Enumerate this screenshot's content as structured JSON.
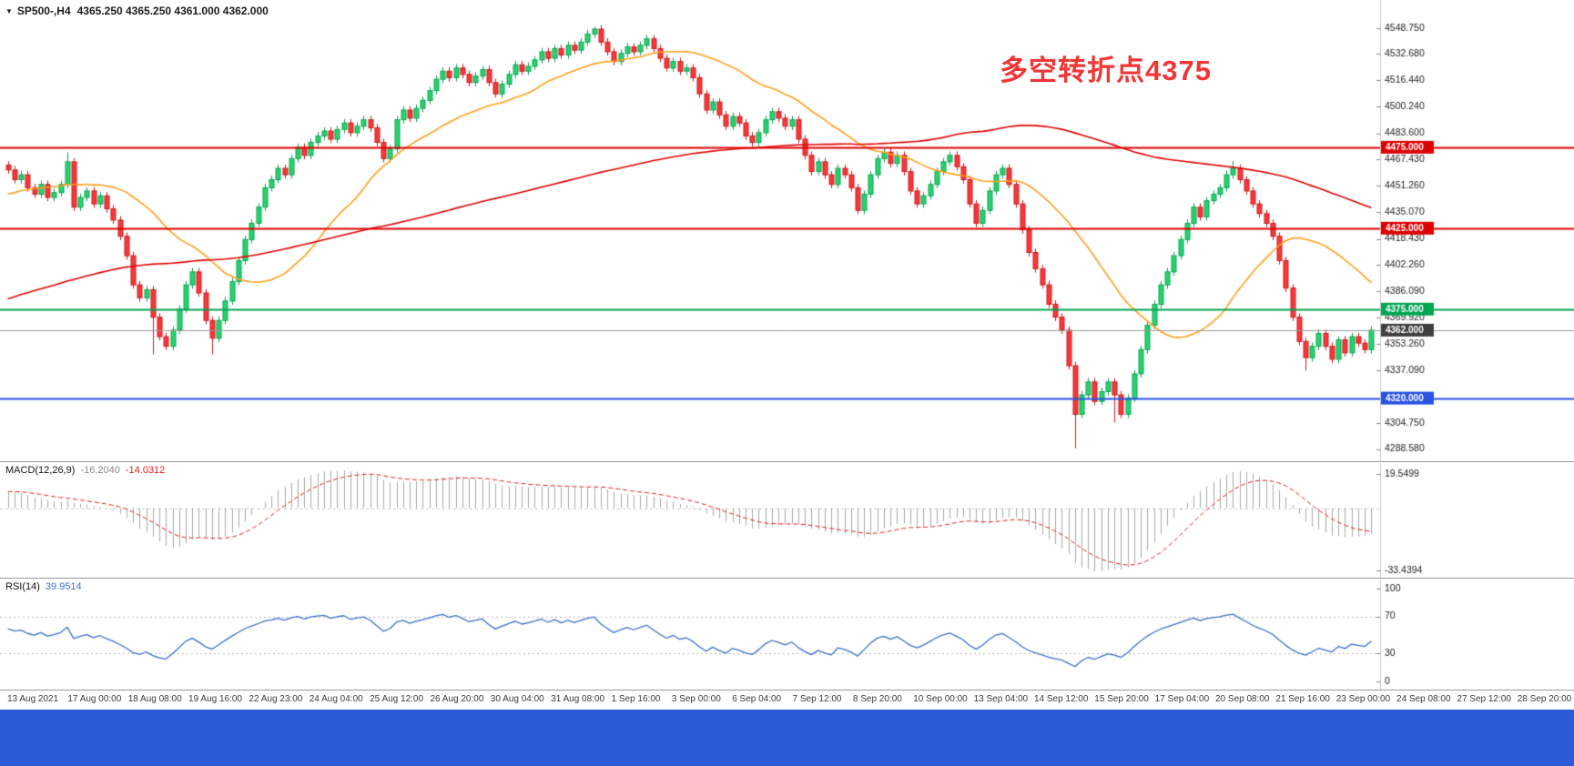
{
  "header": {
    "dropdown_icon": "▼",
    "symbol_period": "SP500-,H4",
    "ohlc_text": "4365.250 4365.250 4361.000 4362.000"
  },
  "annotation": {
    "text": "多空转折点4375",
    "color": "#f13636"
  },
  "style": {
    "bull_fill": "#27d36e",
    "bull_stroke": "#0da352",
    "bear_fill": "#f5383b",
    "bear_stroke": "#cc1c1f",
    "axis_text": "#1a1a1a",
    "axis_line": "#c9c9c9",
    "macd_bar": "#a9a9a9",
    "macd_signal": "#e02020",
    "rsi_line": "#3b6fc9",
    "level_dotted": "#b8b8b8",
    "zero_line": "#cfcfcf"
  },
  "chart_data": [
    {
      "type": "candlestick",
      "symbol": "SP500-",
      "timeframe": "H4",
      "ylim": [
        4281,
        4566
      ],
      "y_ticks": [
        4548.75,
        4532.68,
        4516.44,
        4500.24,
        4483.6,
        4467.43,
        4451.26,
        4435.07,
        4418.43,
        4402.26,
        4386.09,
        4369.92,
        4353.26,
        4337.09,
        4304.75,
        4288.58
      ],
      "hlines": [
        {
          "price": 4475,
          "label": "4475.000",
          "color": "#dd0000",
          "width": 2
        },
        {
          "price": 4425,
          "label": "4425.000",
          "color": "#dd0000",
          "width": 2
        },
        {
          "price": 4375,
          "label": "4375.000",
          "color": "#00a651",
          "width": 2
        },
        {
          "price": 4320,
          "label": "4320.000",
          "color": "#2952e3",
          "width": 2
        },
        {
          "price": 4362,
          "label": "4362.000",
          "color": "#9a9a9a",
          "width": 1,
          "tag_bg": "#3f3f3f",
          "current": true
        }
      ],
      "moving_averages": [
        {
          "period": 24,
          "color": "#ff9f1a"
        },
        {
          "period": 120,
          "color": "#e00000"
        }
      ],
      "pre_history": {
        "start": 4300,
        "end": 4460,
        "count": 120,
        "zigzag": 5
      },
      "first_open": 4464,
      "default_wick": 2.4,
      "wick_overrides": {
        "9": {
          "high": 4472
        },
        "22": {
          "low": 4347
        },
        "31": {
          "low": 4347
        },
        "89": {
          "high": 4549.5
        },
        "162": {
          "low": 4289
        },
        "168": {
          "low": 4305
        },
        "186": {
          "high": 4466.5
        },
        "197": {
          "low": 4337
        }
      },
      "closes": [
        4461,
        4455,
        4458,
        4450,
        4446,
        4452,
        4444,
        4447,
        4452,
        4466,
        4438,
        4444,
        4448,
        4440,
        4445,
        4437,
        4430,
        4420,
        4408,
        4390,
        4382,
        4387,
        4370,
        4358,
        4352,
        4362,
        4375,
        4390,
        4398,
        4385,
        4368,
        4357,
        4368,
        4380,
        4392,
        4405,
        4418,
        4428,
        4438,
        4450,
        4455,
        4462,
        4458,
        4468,
        4475,
        4470,
        4478,
        4482,
        4485,
        4480,
        4486,
        4490,
        4484,
        4488,
        4492,
        4487,
        4478,
        4468,
        4474,
        4492,
        4498,
        4493,
        4499,
        4504,
        4510,
        4517,
        4522,
        4518,
        4524,
        4520,
        4515,
        4519,
        4523,
        4515,
        4508,
        4514,
        4520,
        4526,
        4522,
        4525,
        4529,
        4534,
        4530,
        4536,
        4532,
        4538,
        4535,
        4540,
        4545,
        4548,
        4540,
        4534,
        4528,
        4533,
        4537,
        4534,
        4538,
        4542,
        4536,
        4530,
        4524,
        4528,
        4522,
        4524,
        4518,
        4508,
        4498,
        4503,
        4495,
        4488,
        4494,
        4490,
        4482,
        4478,
        4484,
        4492,
        4497,
        4493,
        4488,
        4492,
        4480,
        4470,
        4460,
        4466,
        4458,
        4452,
        4462,
        4458,
        4450,
        4436,
        4446,
        4458,
        4468,
        4472,
        4465,
        4470,
        4460,
        4448,
        4440,
        4445,
        4452,
        4460,
        4466,
        4470,
        4463,
        4455,
        4440,
        4428,
        4436,
        4448,
        4458,
        4462,
        4452,
        4440,
        4424,
        4410,
        4400,
        4390,
        4378,
        4370,
        4362,
        4340,
        4310,
        4322,
        4330,
        4318,
        4324,
        4330,
        4322,
        4310,
        4320,
        4335,
        4350,
        4365,
        4378,
        4390,
        4398,
        4408,
        4418,
        4428,
        4438,
        4432,
        4442,
        4446,
        4450,
        4458,
        4462,
        4455,
        4448,
        4440,
        4434,
        4428,
        4420,
        4405,
        4388,
        4370,
        4355,
        4345,
        4352,
        4360,
        4352,
        4344,
        4356,
        4348,
        4358,
        4354,
        4350,
        4362
      ]
    },
    {
      "type": "bar",
      "name": "MACD(12,26,9)",
      "value_main": "-16.2040",
      "value_signal": "-14.0312",
      "fast": 12,
      "slow": 26,
      "signal": 9,
      "y_ticks": [
        "19.5499",
        "-33.4394"
      ]
    },
    {
      "type": "line",
      "name": "RSI(14)",
      "value": "39.9514",
      "period": 14,
      "levels": [
        70,
        30
      ],
      "y_ticks": [
        "100",
        "70",
        "30",
        "0"
      ],
      "ylim": [
        0,
        100
      ]
    }
  ],
  "time_axis": {
    "labels": [
      "13 Aug 2021",
      "17 Aug 00:00",
      "18 Aug 08:00",
      "19 Aug 16:00",
      "22 Aug 23:00",
      "24 Aug 04:00",
      "25 Aug 12:00",
      "26 Aug 20:00",
      "30 Aug 04:00",
      "31 Aug 08:00",
      "1 Sep 16:00",
      "3 Sep 00:00",
      "6 Sep 04:00",
      "7 Sep 12:00",
      "8 Sep 20:00",
      "10 Sep 00:00",
      "13 Sep 04:00",
      "14 Sep 12:00",
      "15 Sep 20:00",
      "17 Sep 04:00",
      "20 Sep 08:00",
      "21 Sep 16:00",
      "23 Sep 00:00",
      "24 Sep 08:00",
      "27 Sep 12:00",
      "28 Sep 20:00"
    ]
  },
  "taskbar": {
    "color": "#2b59d8"
  }
}
